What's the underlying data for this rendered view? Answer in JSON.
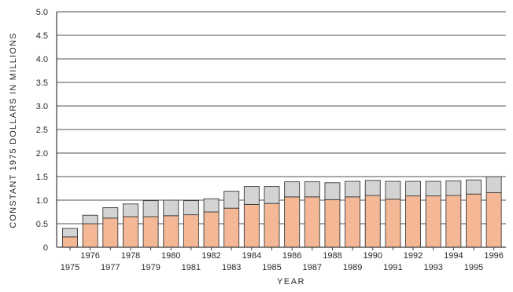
{
  "chart_data": {
    "type": "bar",
    "stacked": true,
    "title": "",
    "xlabel": "YEAR",
    "ylabel": "CONSTANT 1975 DOLLARS IN MILLIONS",
    "ylim": [
      0,
      5.0
    ],
    "yticks": [
      "0",
      "0.5",
      "1.0",
      "1.5",
      "2.0",
      "2.5",
      "3.0",
      "3.5",
      "4.0",
      "4.5",
      "5.0"
    ],
    "grid": true,
    "legend": "none",
    "categories": [
      "1975",
      "1976",
      "1977",
      "1978",
      "1979",
      "1980",
      "1981",
      "1982",
      "1983",
      "1984",
      "1985",
      "1986",
      "1987",
      "1988",
      "1989",
      "1990",
      "1991",
      "1992",
      "1993",
      "1994",
      "1995",
      "1996"
    ],
    "series": [
      {
        "color": "#f5b896",
        "values": [
          0.22,
          0.5,
          0.62,
          0.65,
          0.65,
          0.67,
          0.69,
          0.75,
          0.83,
          0.91,
          0.93,
          1.07,
          1.07,
          1.01,
          1.07,
          1.1,
          1.02,
          1.09,
          1.09,
          1.1,
          1.13,
          1.16
        ]
      },
      {
        "color": "#d3d3d3",
        "values": [
          0.18,
          0.18,
          0.22,
          0.27,
          0.34,
          0.33,
          0.3,
          0.28,
          0.36,
          0.38,
          0.36,
          0.32,
          0.32,
          0.36,
          0.33,
          0.32,
          0.38,
          0.31,
          0.31,
          0.31,
          0.3,
          0.34
        ]
      }
    ],
    "colors": {
      "grid": "#505050",
      "axis": "#3a3a3a",
      "bar_edge": "#3a3a3a"
    }
  }
}
